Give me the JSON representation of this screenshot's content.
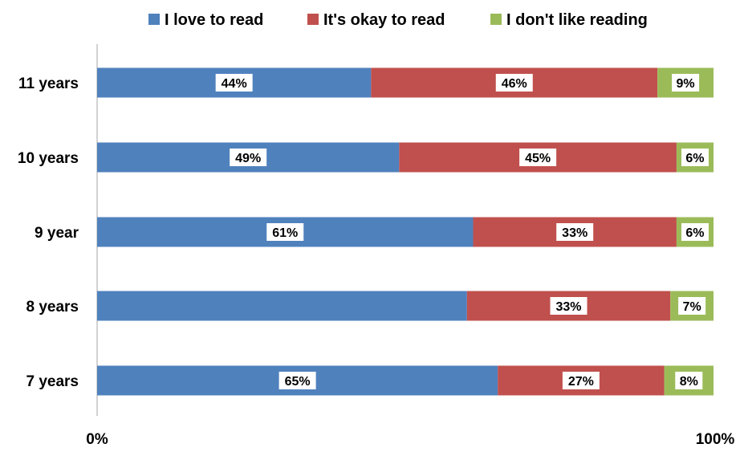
{
  "chart_data": {
    "type": "bar",
    "orientation": "horizontal",
    "stacked": "percent",
    "categories": [
      "11 years",
      "10 years",
      "9 year",
      "8 years",
      "7 years"
    ],
    "series": [
      {
        "name": "I love to read",
        "color": "#4F81BD",
        "values": [
          44,
          49,
          61,
          60,
          65
        ],
        "labels": [
          "44%",
          "49%",
          "61%",
          "",
          "65%"
        ]
      },
      {
        "name": "It's okay to read",
        "color": "#C0504D",
        "values": [
          46,
          45,
          33,
          33,
          27
        ],
        "labels": [
          "46%",
          "45%",
          "33%",
          "33%",
          "27%"
        ]
      },
      {
        "name": "I don't like reading",
        "color": "#9BBB59",
        "values": [
          9,
          6,
          6,
          7,
          8
        ],
        "labels": [
          "9%",
          "6%",
          "6%",
          "7%",
          "8%"
        ]
      }
    ],
    "xlim": [
      0,
      100
    ],
    "x_tick_labels": [
      "0%",
      "100%"
    ],
    "grid": false,
    "legend_position": "top"
  }
}
